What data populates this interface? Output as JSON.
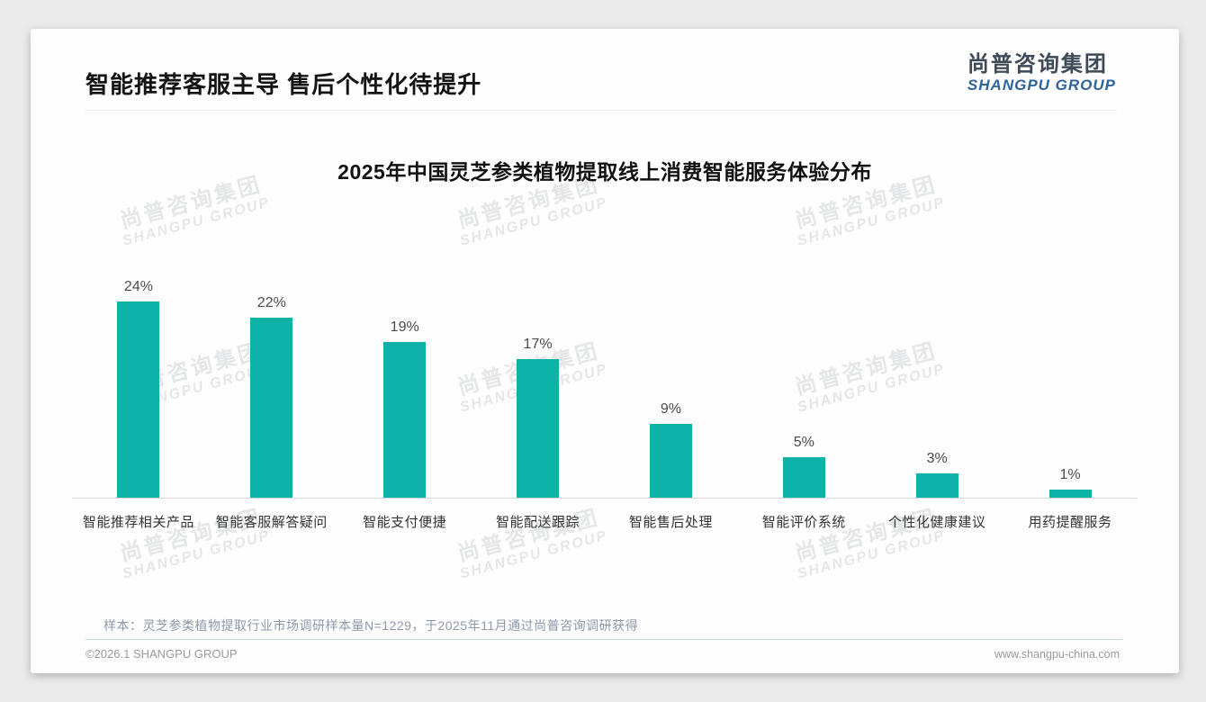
{
  "page_title": "智能推荐客服主导 售后个性化待提升",
  "logo": {
    "cn": "尚普咨询集团",
    "en": "SHANGPU GROUP"
  },
  "watermark": {
    "line1": "尚普咨询集团",
    "line2": "SHANGPU GROUP"
  },
  "chart_data": {
    "type": "bar",
    "title": "2025年中国灵芝参类植物提取线上消费智能服务体验分布",
    "categories": [
      "智能推荐相关产品",
      "智能客服解答疑问",
      "智能支付便捷",
      "智能配送跟踪",
      "智能售后处理",
      "智能评价系统",
      "个性化健康建议",
      "用药提醒服务"
    ],
    "values": [
      24,
      22,
      19,
      17,
      9,
      5,
      3,
      1
    ],
    "unit": "%",
    "bar_color": "#0eb2a7",
    "ylim": [
      0,
      26
    ],
    "grid": false,
    "legend": false,
    "value_labels": [
      "24%",
      "22%",
      "19%",
      "17%",
      "9%",
      "5%",
      "3%",
      "1%"
    ]
  },
  "note": "样本：灵芝参类植物提取行业市场调研样本量N=1229，于2025年11月通过尚普咨询调研获得",
  "footer": {
    "left": "©2026.1 SHANGPU GROUP",
    "right": "www.shangpu-china.com"
  }
}
